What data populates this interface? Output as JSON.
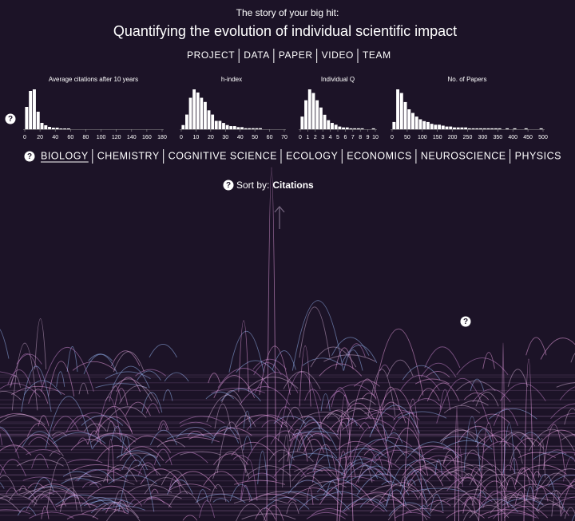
{
  "header": {
    "subtitle": "The story of your big hit:",
    "title": "Quantifying the evolution of individual scientific impact"
  },
  "nav": {
    "items": [
      "PROJECT",
      "DATA",
      "PAPER",
      "VIDEO",
      "TEAM"
    ]
  },
  "help_label": "?",
  "chart_data": [
    {
      "type": "histogram",
      "title": "Average citations after 10 years",
      "color": "#ffffff",
      "bins": [
        0,
        5,
        10,
        15,
        20,
        25,
        30,
        35,
        40,
        45,
        50,
        55,
        60
      ],
      "values": [
        28,
        48,
        50,
        22,
        8,
        5,
        3,
        2,
        2,
        1,
        1,
        1
      ],
      "xlim": [
        0,
        180
      ],
      "xticks": [
        0,
        20,
        40,
        60,
        80,
        100,
        120,
        140,
        160,
        180
      ]
    },
    {
      "type": "histogram",
      "title": "h-index",
      "color": "#ffffff",
      "bins": [
        0,
        2.5,
        5,
        7.5,
        10,
        12.5,
        15,
        17.5,
        20,
        22.5,
        25,
        27.5,
        30,
        32.5,
        35,
        37.5,
        40,
        42.5,
        45,
        47.5,
        50,
        52.5,
        55
      ],
      "values": [
        4,
        14,
        30,
        38,
        35,
        30,
        26,
        18,
        14,
        8,
        8,
        6,
        4,
        3,
        3,
        2,
        2,
        1,
        1,
        1,
        1,
        1
      ],
      "xlim": [
        0,
        70
      ],
      "xticks": [
        0,
        10,
        20,
        30,
        40,
        50,
        60,
        70
      ]
    },
    {
      "type": "histogram",
      "title": "Individual Q",
      "color": "#ffffff",
      "bins": [
        0,
        0.5,
        1,
        1.5,
        2,
        2.5,
        3,
        3.5,
        4,
        4.5,
        5,
        5.5,
        6,
        6.5,
        7,
        7.5,
        8,
        8.5,
        9,
        9.5,
        10
      ],
      "values": [
        14,
        32,
        44,
        40,
        32,
        24,
        16,
        10,
        7,
        5,
        3,
        2,
        2,
        1,
        1,
        1,
        1,
        0,
        0,
        1
      ],
      "xlim": [
        0,
        10
      ],
      "xticks": [
        0,
        1,
        2,
        3,
        4,
        5,
        6,
        7,
        8,
        9,
        10
      ]
    },
    {
      "type": "histogram",
      "title": "No. of Papers",
      "color": "#ffffff",
      "bins": [
        0,
        12.5,
        25,
        37.5,
        50,
        62.5,
        75,
        87.5,
        100,
        112.5,
        125,
        137.5,
        150,
        162.5,
        175,
        187.5,
        200,
        212.5,
        225,
        237.5,
        250,
        262.5,
        275,
        287.5,
        300,
        312.5,
        325,
        337.5,
        350,
        362.5,
        375,
        387.5,
        400,
        412.5,
        425,
        437.5,
        450,
        462.5,
        475,
        487.5,
        500
      ],
      "values": [
        8,
        44,
        40,
        30,
        22,
        18,
        14,
        11,
        9,
        8,
        6,
        5,
        5,
        4,
        3,
        3,
        2,
        2,
        2,
        2,
        1,
        1,
        1,
        1,
        1,
        1,
        1,
        1,
        1,
        0,
        1,
        0,
        1,
        0,
        0,
        1,
        0,
        0,
        0,
        1
      ],
      "xlim": [
        0,
        500
      ],
      "xticks": [
        0,
        50,
        100,
        150,
        200,
        250,
        300,
        350,
        400,
        450,
        500
      ]
    }
  ],
  "fields": {
    "items": [
      "BIOLOGY",
      "CHEMISTRY",
      "COGNITIVE SCIENCE",
      "ECOLOGY",
      "ECONOMICS",
      "NEUROSCIENCE",
      "PHYSICS"
    ],
    "selected": 0
  },
  "sort": {
    "label": "Sort by:",
    "value": "Citations"
  }
}
